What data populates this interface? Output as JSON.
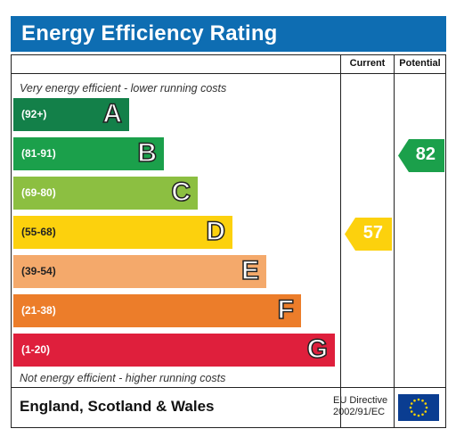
{
  "title": "Energy Efficiency Rating",
  "columns": {
    "current": "Current",
    "potential": "Potential"
  },
  "top_note": "Very energy efficient - lower running costs",
  "bottom_note": "Not energy efficient - higher running costs",
  "bands": [
    {
      "range": "(92+)",
      "letter": "A",
      "color": "#138049"
    },
    {
      "range": "(81-91)",
      "letter": "B",
      "color": "#1ba04b"
    },
    {
      "range": "(69-80)",
      "letter": "C",
      "color": "#8cbf41"
    },
    {
      "range": "(55-68)",
      "letter": "D",
      "color": "#fcd10d"
    },
    {
      "range": "(39-54)",
      "letter": "E",
      "color": "#f4a96b"
    },
    {
      "range": "(21-38)",
      "letter": "F",
      "color": "#ec7d2a"
    },
    {
      "range": "(1-20)",
      "letter": "G",
      "color": "#df1f3c"
    }
  ],
  "current": {
    "value": "57",
    "band": "D",
    "color": "#fcd10d"
  },
  "potential": {
    "value": "82",
    "band": "B",
    "color": "#1ba04b"
  },
  "footer": {
    "region": "England, Scotland & Wales",
    "directive_line1": "EU Directive",
    "directive_line2": "2002/91/EC",
    "flag_icon": "eu-flag-icon"
  }
}
